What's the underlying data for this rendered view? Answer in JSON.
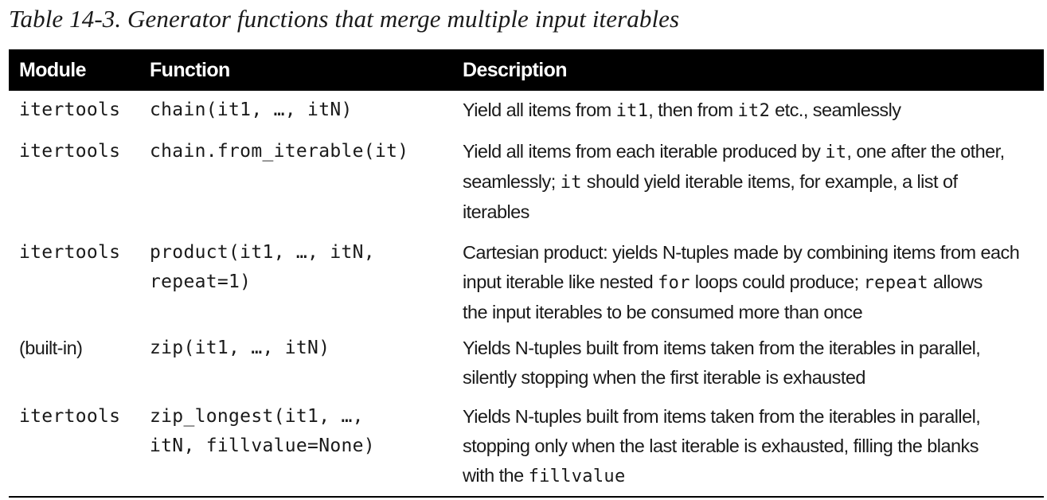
{
  "caption": "Table 14-3. Generator functions that merge multiple input iterables",
  "headers": {
    "module": "Module",
    "function": "Function",
    "description": "Description"
  },
  "rows": [
    {
      "module": "itertools",
      "module_style": "mono",
      "function_lines": [
        "chain(it1, …, itN)"
      ],
      "description_lines": [
        [
          {
            "t": "Yield all items from "
          },
          {
            "t": "it1",
            "code": true
          },
          {
            "t": ", then from "
          },
          {
            "t": "it2",
            "code": true
          },
          {
            "t": " etc., seamlessly"
          }
        ]
      ]
    },
    {
      "module": "itertools",
      "module_style": "mono",
      "function_lines": [
        "chain.from_iterable(it)"
      ],
      "description_lines": [
        [
          {
            "t": "Yield all items from each iterable produced by "
          },
          {
            "t": "it",
            "code": true
          },
          {
            "t": ", one after the other,"
          }
        ],
        [
          {
            "t": "seamlessly; "
          },
          {
            "t": "it",
            "code": true
          },
          {
            "t": " should yield iterable items, for example, a list of"
          }
        ],
        [
          {
            "t": "iterables"
          }
        ]
      ]
    },
    {
      "module": "itertools",
      "module_style": "mono",
      "function_lines": [
        "product(it1, …, itN,",
        "repeat=1)"
      ],
      "description_lines": [
        [
          {
            "t": "Cartesian product: yields N-tuples made by combining items from each"
          }
        ],
        [
          {
            "t": "input iterable like nested "
          },
          {
            "t": "for",
            "code": true
          },
          {
            "t": " loops could produce; "
          },
          {
            "t": "repeat",
            "code": true
          },
          {
            "t": " allows"
          }
        ],
        [
          {
            "t": "the input iterables to be consumed more than once"
          }
        ]
      ]
    },
    {
      "module": "(built-in)",
      "module_style": "sans",
      "function_lines": [
        "zip(it1, …, itN)"
      ],
      "description_lines": [
        [
          {
            "t": "Yields N-tuples built from items taken from the iterables in parallel,"
          }
        ],
        [
          {
            "t": "silently stopping when the first iterable is exhausted"
          }
        ]
      ]
    },
    {
      "module": "itertools",
      "module_style": "mono",
      "function_lines": [
        "zip_longest(it1, …,",
        "itN, fillvalue=None)"
      ],
      "description_lines": [
        [
          {
            "t": "Yields N-tuples built from items taken from the iterables in parallel,"
          }
        ],
        [
          {
            "t": "stopping only when the last iterable is exhausted, filling the blanks"
          }
        ],
        [
          {
            "t": "with the "
          },
          {
            "t": "fillvalue",
            "code": true
          }
        ]
      ]
    }
  ]
}
